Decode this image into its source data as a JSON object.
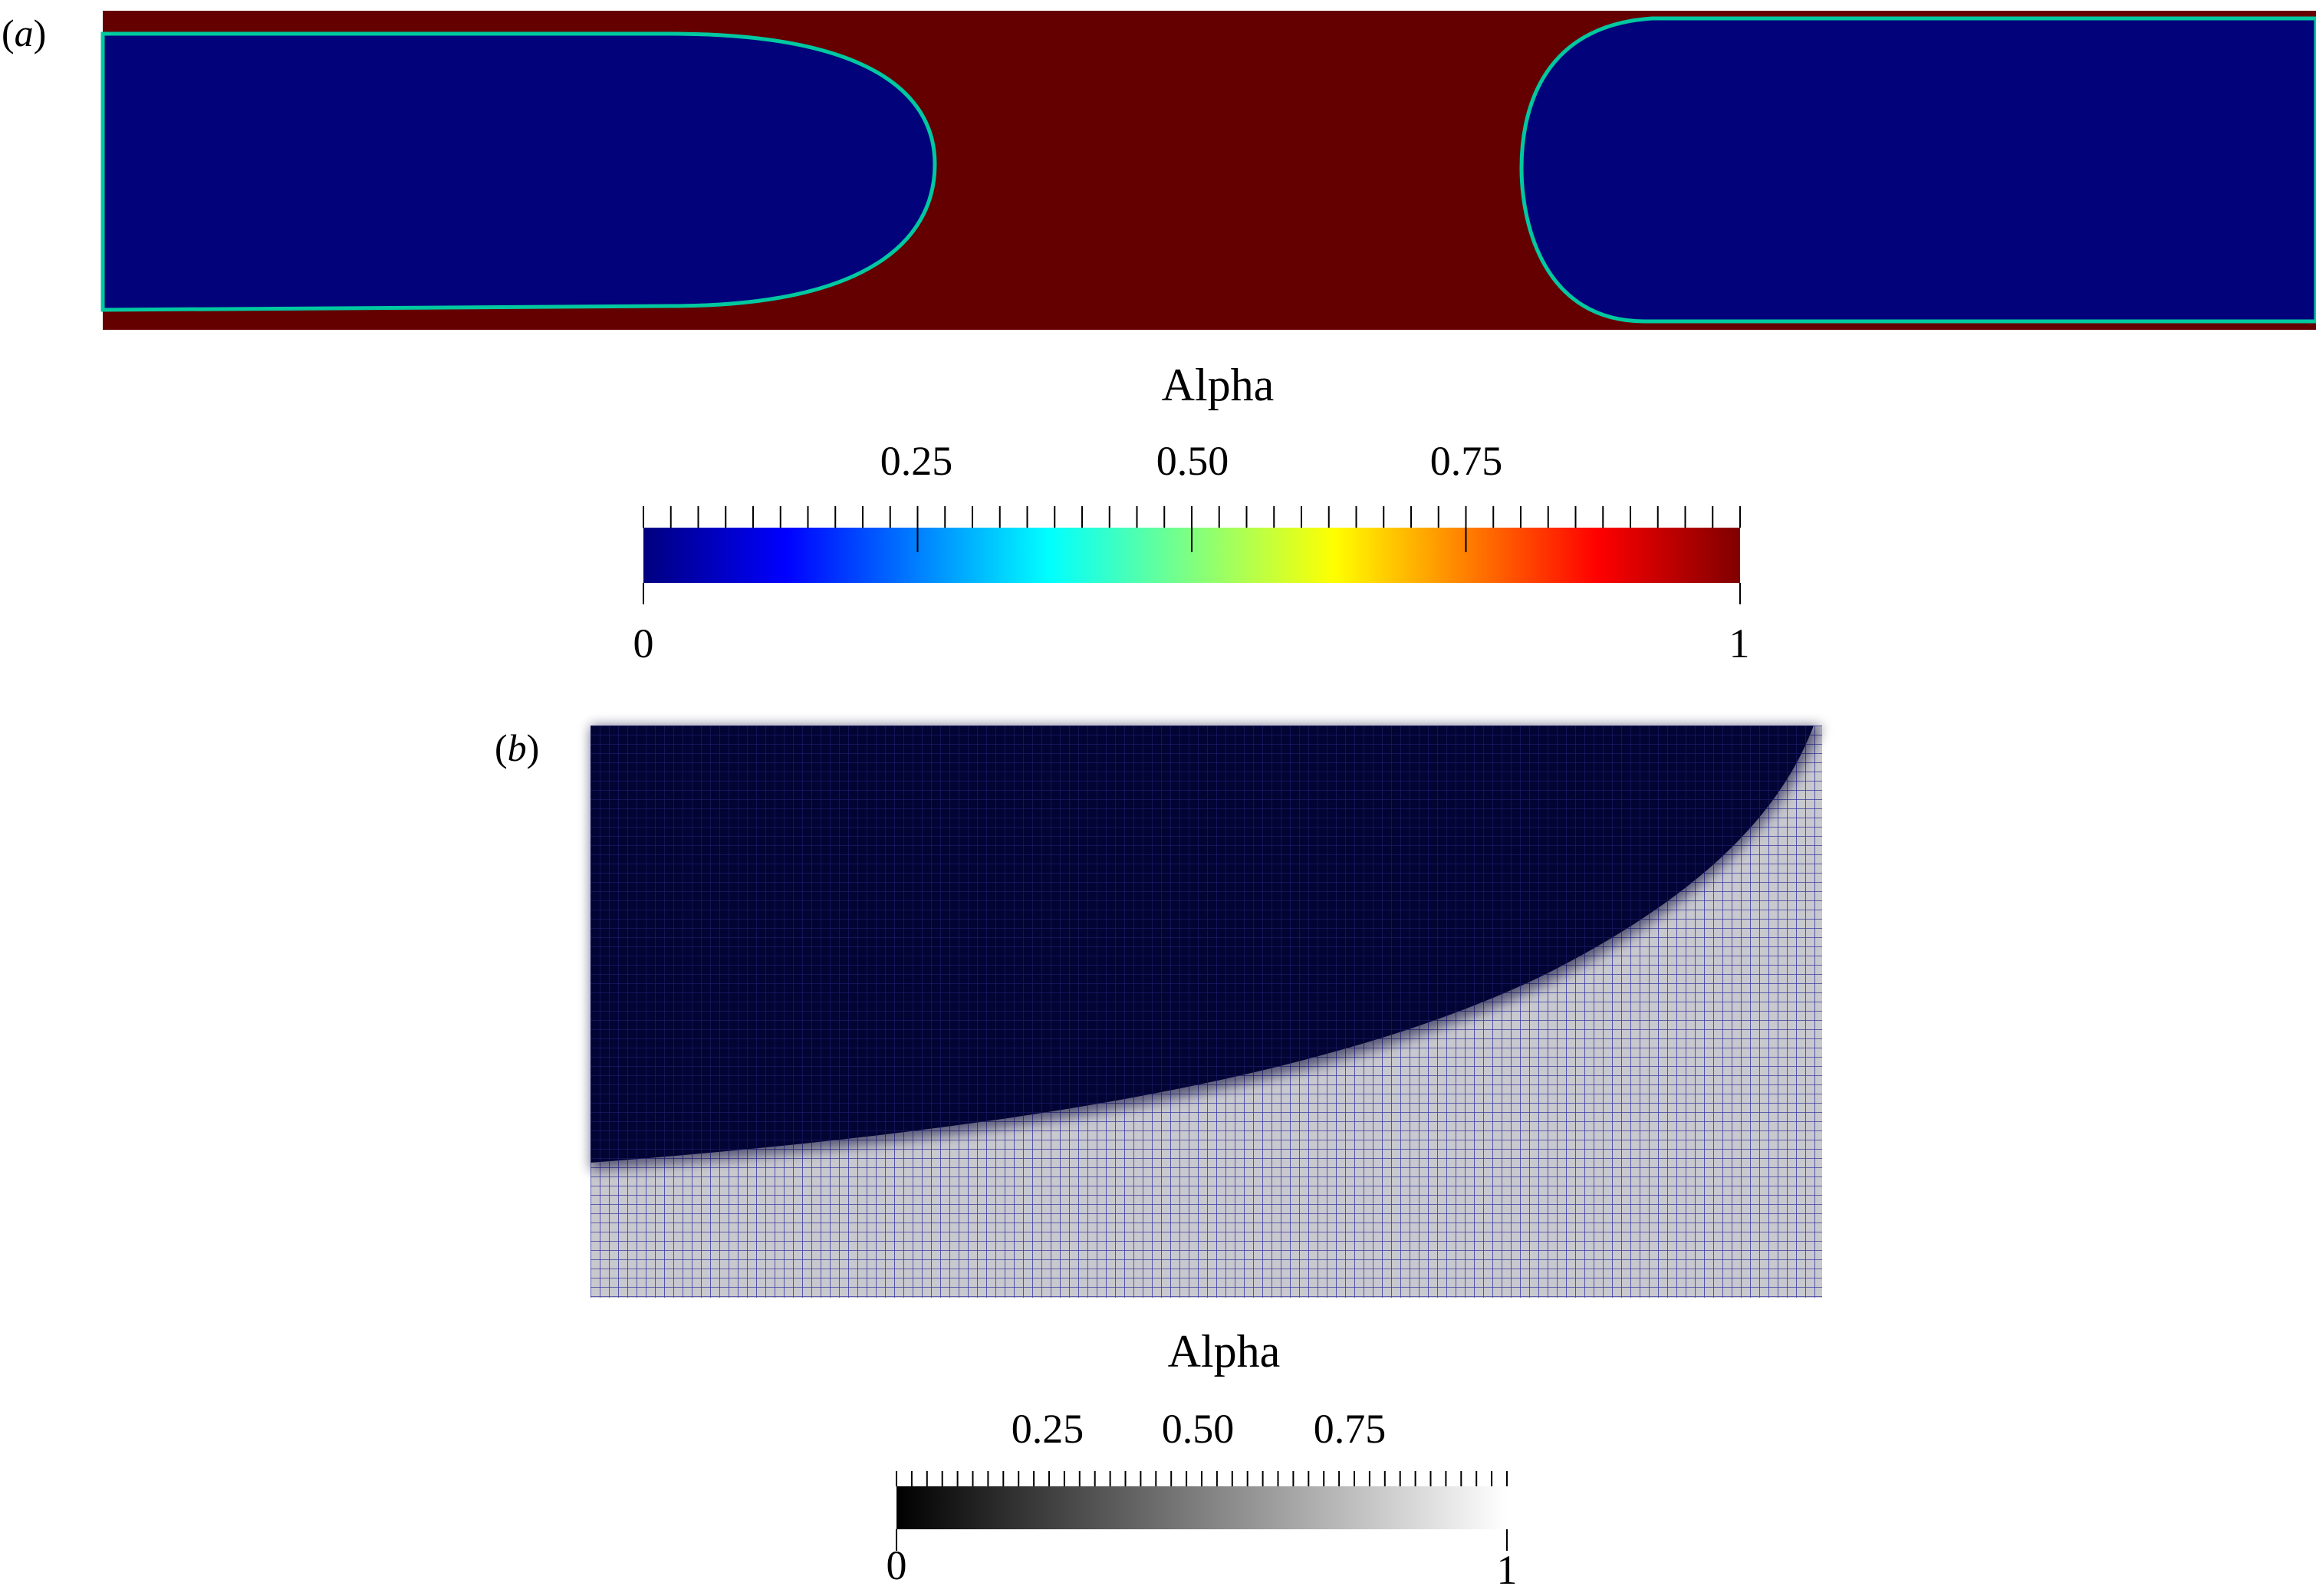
{
  "panel_a": {
    "label_open": "(",
    "label_letter": "a",
    "label_close": ")",
    "colorbar": {
      "title": "Alpha",
      "colormap": "rainbow-jet",
      "range": [
        0,
        1
      ],
      "major_labels": [
        "0.25",
        "0.50",
        "0.75"
      ],
      "end_labels": [
        "0",
        "1"
      ],
      "colors": [
        "#00007f",
        "#0000ff",
        "#00ffff",
        "#ffff00",
        "#ff0000",
        "#7f0000"
      ]
    },
    "fill_colors": {
      "liquid": "#640000",
      "bubble": "#02037a"
    }
  },
  "panel_b": {
    "label_open": "(",
    "label_letter": "b",
    "label_close": ")",
    "colorbar": {
      "title": "Alpha",
      "colormap": "grayscale",
      "range": [
        0,
        1
      ],
      "major_labels": [
        "0.25",
        "0.50",
        "0.75"
      ],
      "end_labels": [
        "0",
        "1"
      ],
      "colors": [
        "#000000",
        "#ffffff"
      ]
    },
    "fill_colors": {
      "dark": "#020434",
      "light": "#c8c8cf",
      "mesh": "#3a3aa0"
    }
  }
}
